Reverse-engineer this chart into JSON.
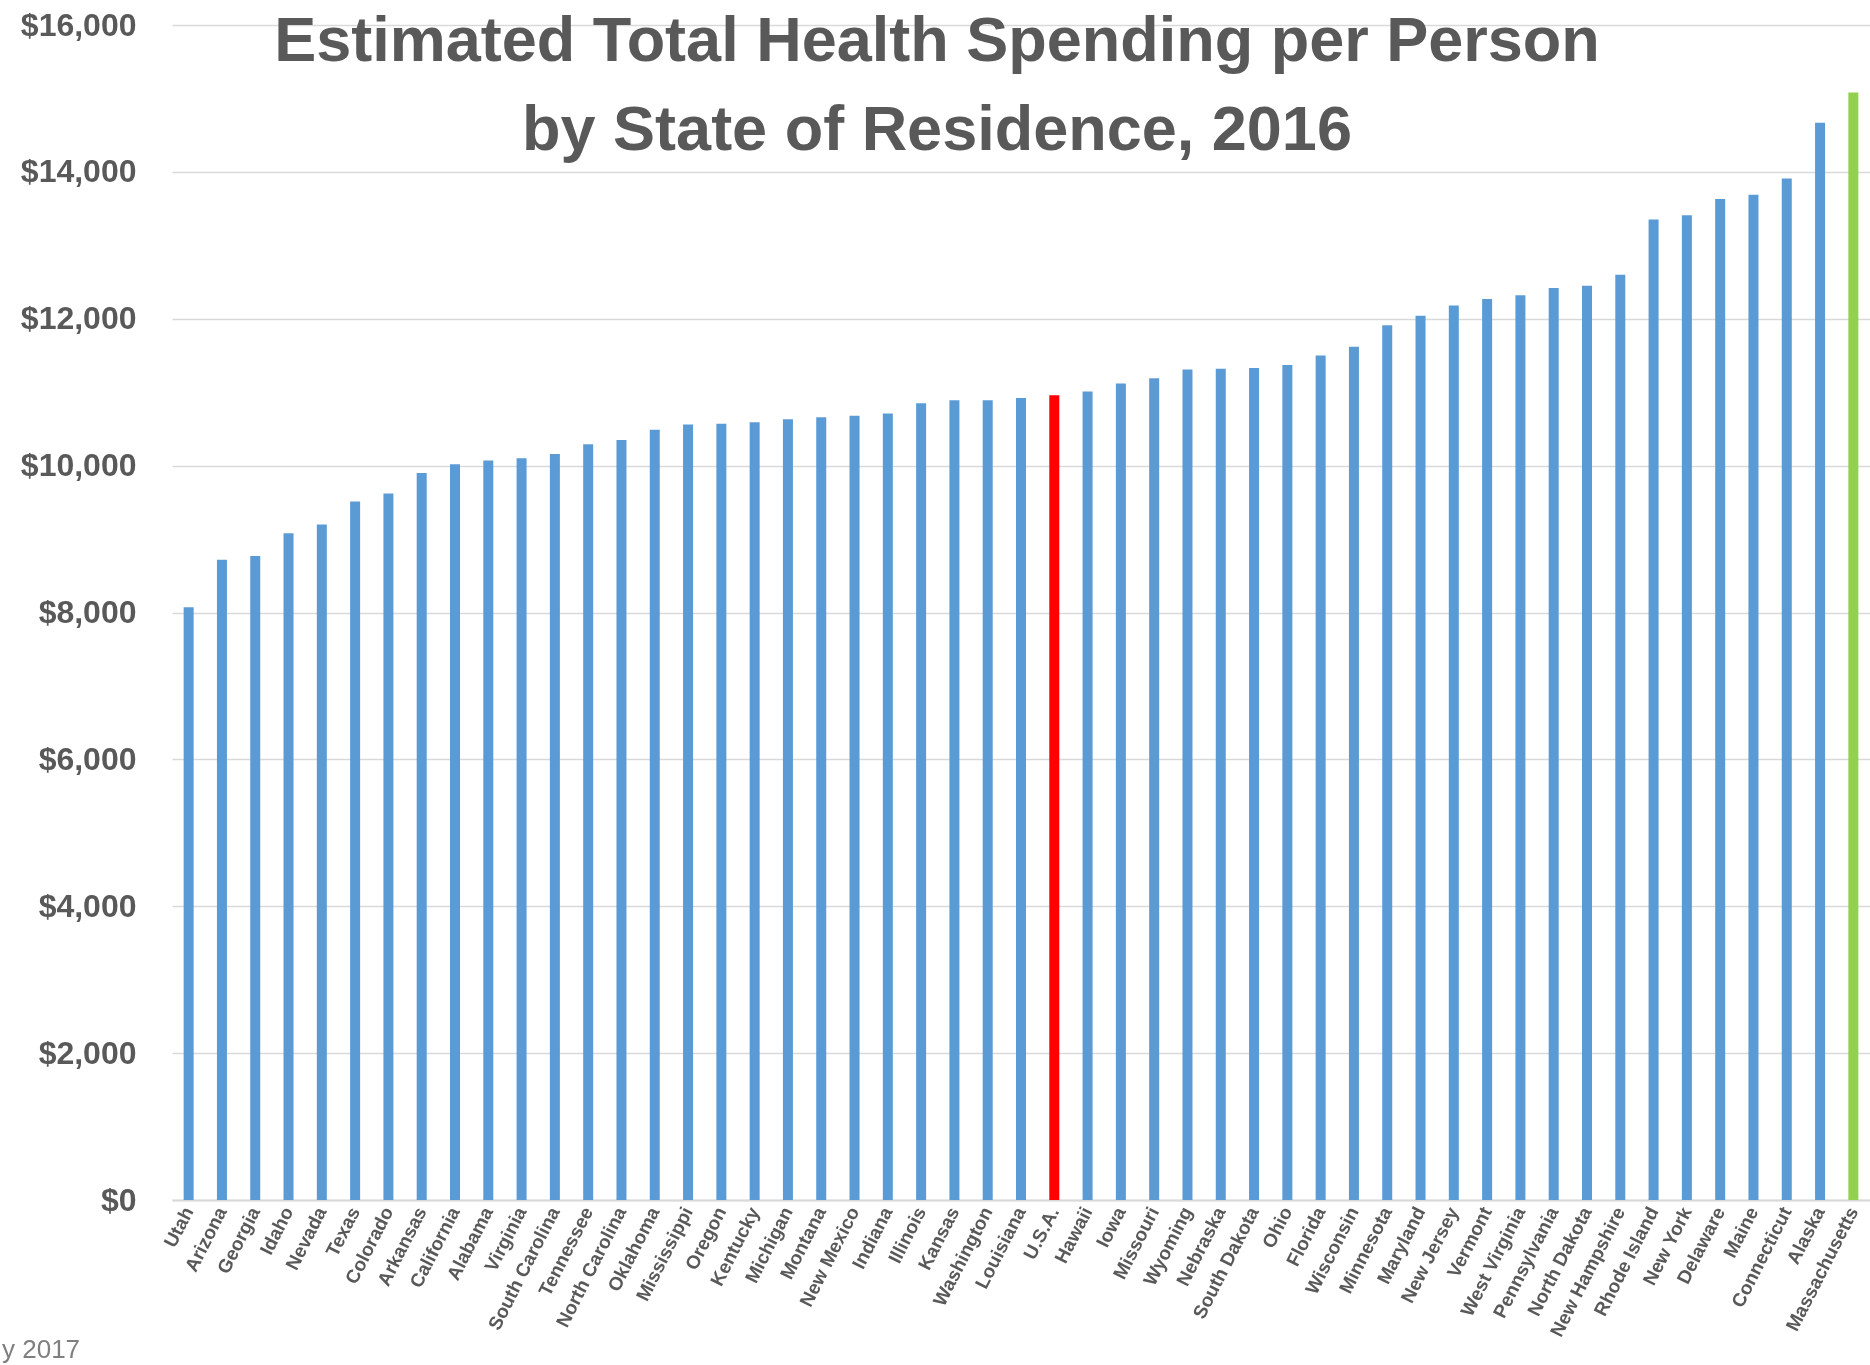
{
  "chart_data": {
    "type": "bar",
    "title": "Estimated Total Health Spending per Person\nby State of Residence, 2016",
    "categories": [
      "Utah",
      "Arizona",
      "Georgia",
      "Idaho",
      "Nevada",
      "Texas",
      "Colorado",
      "Arkansas",
      "California",
      "Alabama",
      "Virginia",
      "South Carolina",
      "Tennessee",
      "North Carolina",
      "Oklahoma",
      "Mississippi",
      "Oregon",
      "Kentucky",
      "Michigan",
      "Montana",
      "New Mexico",
      "Indiana",
      "Illinois",
      "Kansas",
      "Washington",
      "Louisiana",
      "U.S.A.",
      "Hawaii",
      "Iowa",
      "Missouri",
      "Wyoming",
      "Nebraska",
      "South Dakota",
      "Ohio",
      "Florida",
      "Wisconsin",
      "Minnesota",
      "Maryland",
      "New Jersey",
      "Vermont",
      "West Virginia",
      "Pennsylvania",
      "North Dakota",
      "New Hampshire",
      "Rhode Island",
      "New York",
      "Delaware",
      "Maine",
      "Connecticut",
      "Alaska",
      "Massachusetts"
    ],
    "values": [
      8070,
      8720,
      8770,
      9080,
      9200,
      9510,
      9620,
      9900,
      10020,
      10070,
      10100,
      10160,
      10290,
      10350,
      10490,
      10560,
      10570,
      10590,
      10630,
      10660,
      10680,
      10710,
      10850,
      10890,
      10890,
      10920,
      10960,
      11010,
      11120,
      11190,
      11310,
      11320,
      11330,
      11370,
      11500,
      11620,
      11910,
      12040,
      12180,
      12270,
      12320,
      12420,
      12450,
      12600,
      13350,
      13410,
      13630,
      13690,
      13910,
      14670,
      15080
    ],
    "colors": [
      "#5b9bd5",
      "#5b9bd5",
      "#5b9bd5",
      "#5b9bd5",
      "#5b9bd5",
      "#5b9bd5",
      "#5b9bd5",
      "#5b9bd5",
      "#5b9bd5",
      "#5b9bd5",
      "#5b9bd5",
      "#5b9bd5",
      "#5b9bd5",
      "#5b9bd5",
      "#5b9bd5",
      "#5b9bd5",
      "#5b9bd5",
      "#5b9bd5",
      "#5b9bd5",
      "#5b9bd5",
      "#5b9bd5",
      "#5b9bd5",
      "#5b9bd5",
      "#5b9bd5",
      "#5b9bd5",
      "#5b9bd5",
      "#ff0000",
      "#5b9bd5",
      "#5b9bd5",
      "#5b9bd5",
      "#5b9bd5",
      "#5b9bd5",
      "#5b9bd5",
      "#5b9bd5",
      "#5b9bd5",
      "#5b9bd5",
      "#5b9bd5",
      "#5b9bd5",
      "#5b9bd5",
      "#5b9bd5",
      "#5b9bd5",
      "#5b9bd5",
      "#5b9bd5",
      "#5b9bd5",
      "#5b9bd5",
      "#5b9bd5",
      "#5b9bd5",
      "#5b9bd5",
      "#5b9bd5",
      "#5b9bd5",
      "#92d050"
    ],
    "ylim": [
      0,
      16000
    ],
    "yticks": [
      {
        "value": 0,
        "label": "$0"
      },
      {
        "value": 2000,
        "label": "$2,000"
      },
      {
        "value": 4000,
        "label": "$4,000"
      },
      {
        "value": 6000,
        "label": "$6,000"
      },
      {
        "value": 8000,
        "label": "$8,000"
      },
      {
        "value": 10000,
        "label": "$10,000"
      },
      {
        "value": 12000,
        "label": "$12,000"
      },
      {
        "value": 14000,
        "label": "$14,000"
      },
      {
        "value": 16000,
        "label": "$16,000"
      }
    ],
    "grid": "y",
    "annotations": [
      "y 2017"
    ]
  }
}
